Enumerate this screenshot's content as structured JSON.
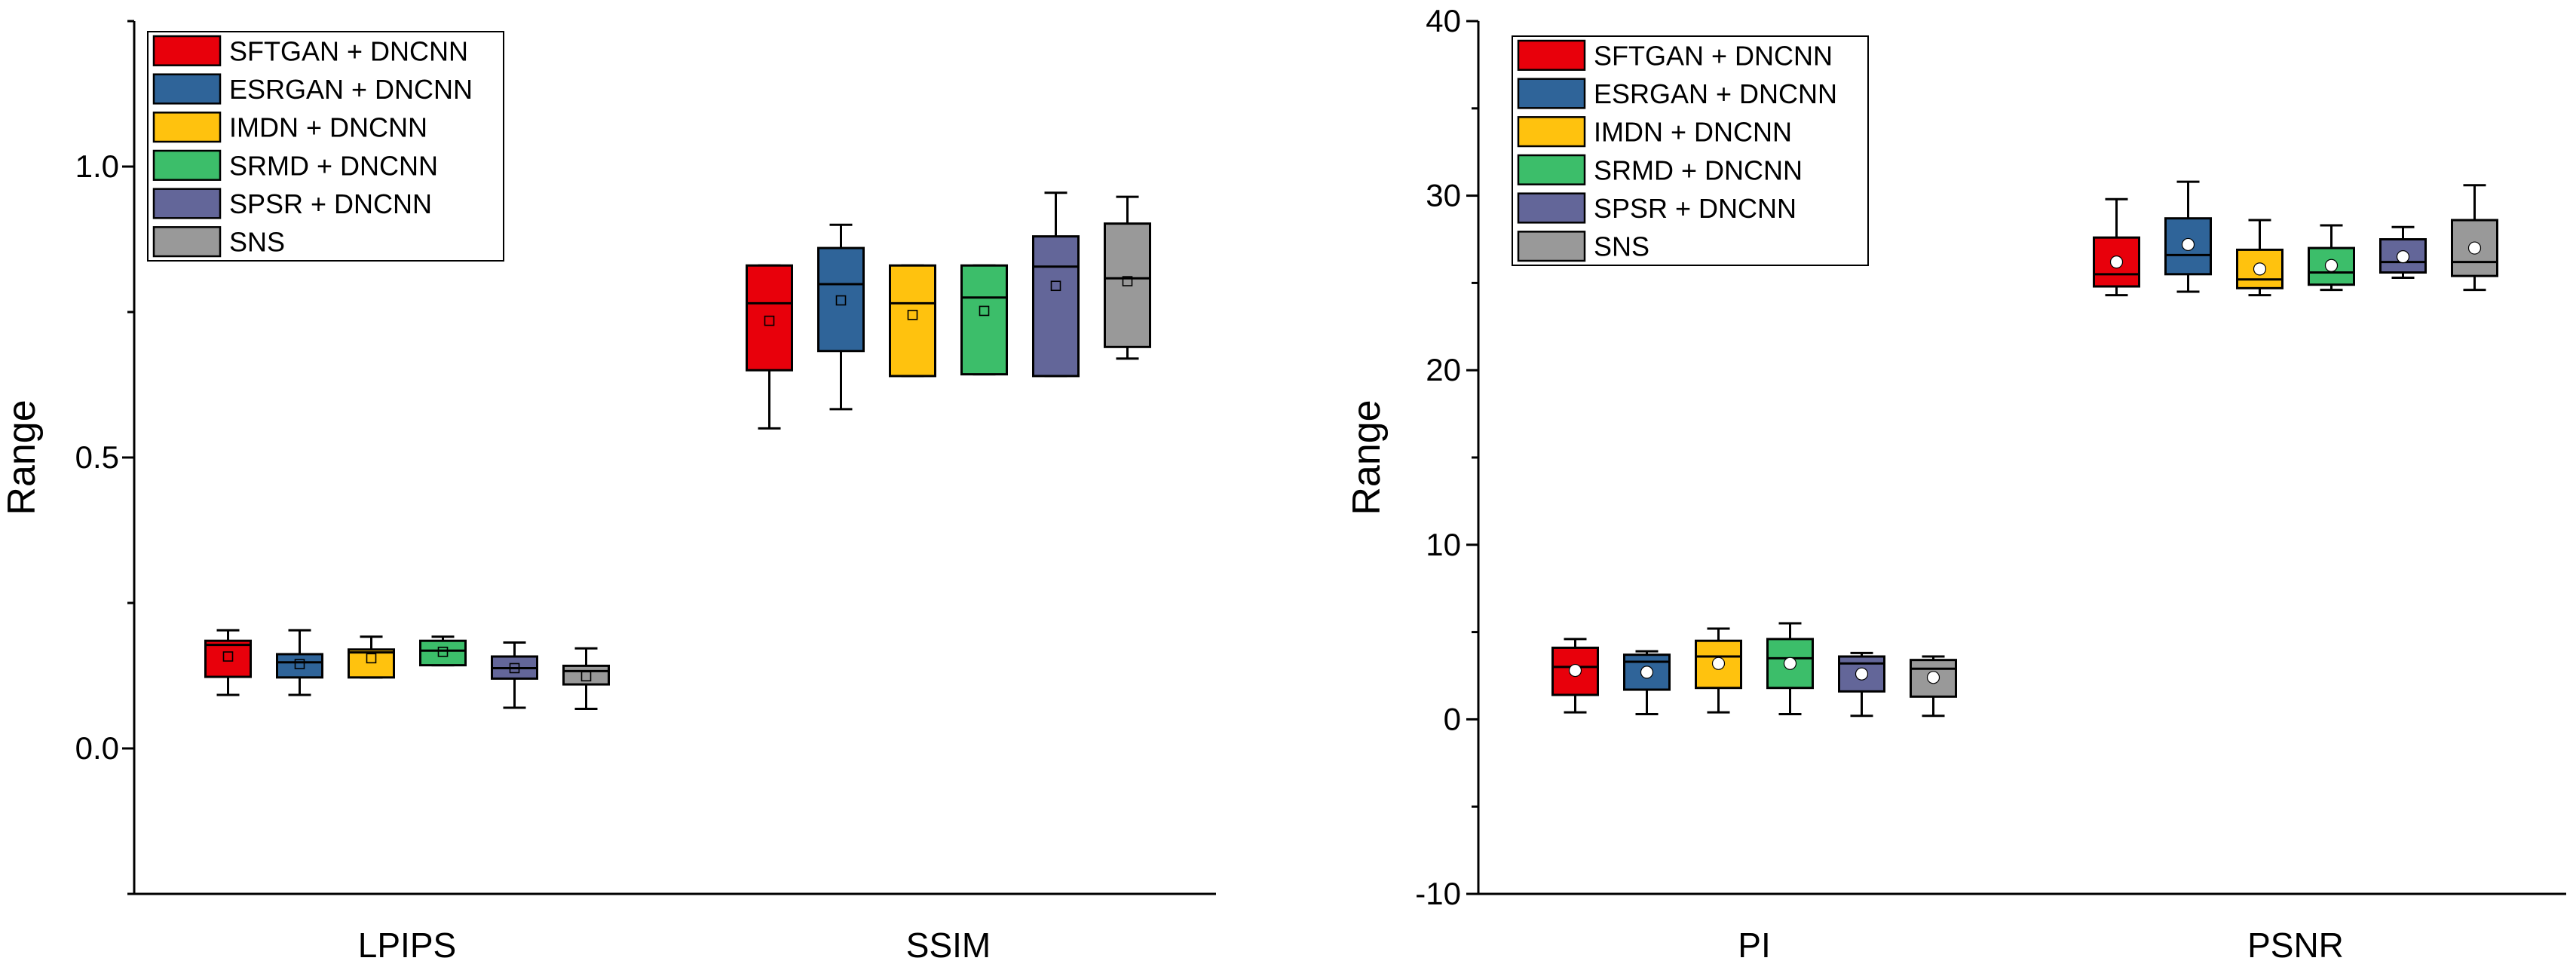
{
  "colors": {
    "SFTGAN + DNCNN": "#e8000b",
    "ESRGAN + DNCNN": "#2f6499",
    "IMDN + DNCNN": "#ffc20e",
    "SRMD + DNCNN": "#3cbe6a",
    "SPSR + DNCNN": "#636699",
    "SNS": "#999999"
  },
  "chart_data": [
    {
      "type": "box",
      "ylabel": "Range",
      "ylim": [
        -0.25,
        1.25
      ],
      "yticks": [
        0.0,
        0.5,
        1.0
      ],
      "ytick_labels": [
        "0.0",
        "0.5",
        "1.0"
      ],
      "mean_marker": "square",
      "legend": {
        "position": "top-left",
        "entries": [
          "SFTGAN + DNCNN",
          "ESRGAN + DNCNN",
          "IMDN + DNCNN",
          "SRMD + DNCNN",
          "SPSR + DNCNN",
          "SNS"
        ]
      },
      "categories": [
        "LPIPS",
        "SSIM"
      ],
      "groups": [
        {
          "category": "LPIPS",
          "boxes": [
            {
              "series": "SFTGAN + DNCNN",
              "min": 0.092,
              "q1": 0.123,
              "median": 0.178,
              "q3": 0.185,
              "max": 0.203,
              "mean": 0.158
            },
            {
              "series": "ESRGAN + DNCNN",
              "min": 0.092,
              "q1": 0.122,
              "median": 0.148,
              "q3": 0.162,
              "max": 0.203,
              "mean": 0.145
            },
            {
              "series": "IMDN + DNCNN",
              "min": 0.122,
              "q1": 0.122,
              "median": 0.165,
              "q3": 0.17,
              "max": 0.192,
              "mean": 0.155
            },
            {
              "series": "SRMD + DNCNN",
              "min": 0.143,
              "q1": 0.143,
              "median": 0.168,
              "q3": 0.185,
              "max": 0.192,
              "mean": 0.166
            },
            {
              "series": "SPSR + DNCNN",
              "min": 0.07,
              "q1": 0.12,
              "median": 0.138,
              "q3": 0.158,
              "max": 0.182,
              "mean": 0.138
            },
            {
              "series": "SNS",
              "min": 0.068,
              "q1": 0.11,
              "median": 0.133,
              "q3": 0.142,
              "max": 0.172,
              "mean": 0.124
            }
          ]
        },
        {
          "category": "SSIM",
          "boxes": [
            {
              "series": "SFTGAN + DNCNN",
              "min": 0.55,
              "q1": 0.65,
              "median": 0.765,
              "q3": 0.83,
              "max": 0.83,
              "mean": 0.735
            },
            {
              "series": "ESRGAN + DNCNN",
              "min": 0.583,
              "q1": 0.683,
              "median": 0.798,
              "q3": 0.86,
              "max": 0.9,
              "mean": 0.77
            },
            {
              "series": "IMDN + DNCNN",
              "min": 0.64,
              "q1": 0.64,
              "median": 0.765,
              "q3": 0.83,
              "max": 0.83,
              "mean": 0.745
            },
            {
              "series": "SRMD + DNCNN",
              "min": 0.643,
              "q1": 0.643,
              "median": 0.775,
              "q3": 0.83,
              "max": 0.83,
              "mean": 0.752
            },
            {
              "series": "SPSR + DNCNN",
              "min": 0.64,
              "q1": 0.64,
              "median": 0.828,
              "q3": 0.88,
              "max": 0.955,
              "mean": 0.795
            },
            {
              "series": "SNS",
              "min": 0.67,
              "q1": 0.69,
              "median": 0.808,
              "q3": 0.902,
              "max": 0.948,
              "mean": 0.803
            }
          ]
        }
      ]
    },
    {
      "type": "box",
      "ylabel": "Range",
      "ylim": [
        -10,
        40
      ],
      "yticks": [
        -10,
        0,
        10,
        20,
        30,
        40
      ],
      "ytick_labels": [
        "-10",
        "0",
        "10",
        "20",
        "30",
        "40"
      ],
      "mean_marker": "circle",
      "legend": {
        "position": "top-left",
        "entries": [
          "SFTGAN + DNCNN",
          "ESRGAN + DNCNN",
          "IMDN + DNCNN",
          "SRMD + DNCNN",
          "SPSR + DNCNN",
          "SNS"
        ]
      },
      "categories": [
        "PI",
        "PSNR"
      ],
      "groups": [
        {
          "category": "PI",
          "boxes": [
            {
              "series": "SFTGAN + DNCNN",
              "min": 0.4,
              "q1": 1.4,
              "median": 3.0,
              "q3": 4.1,
              "max": 4.6,
              "mean": 2.8
            },
            {
              "series": "ESRGAN + DNCNN",
              "min": 0.3,
              "q1": 1.7,
              "median": 3.3,
              "q3": 3.7,
              "max": 3.9,
              "mean": 2.7
            },
            {
              "series": "IMDN + DNCNN",
              "min": 0.4,
              "q1": 1.8,
              "median": 3.6,
              "q3": 4.5,
              "max": 5.2,
              "mean": 3.2
            },
            {
              "series": "SRMD + DNCNN",
              "min": 0.3,
              "q1": 1.8,
              "median": 3.5,
              "q3": 4.6,
              "max": 5.5,
              "mean": 3.2
            },
            {
              "series": "SPSR + DNCNN",
              "min": 0.2,
              "q1": 1.6,
              "median": 3.2,
              "q3": 3.6,
              "max": 3.8,
              "mean": 2.6
            },
            {
              "series": "SNS",
              "min": 0.2,
              "q1": 1.3,
              "median": 2.9,
              "q3": 3.4,
              "max": 3.6,
              "mean": 2.4
            }
          ]
        },
        {
          "category": "PSNR",
          "boxes": [
            {
              "series": "SFTGAN + DNCNN",
              "min": 24.3,
              "q1": 24.8,
              "median": 25.5,
              "q3": 27.6,
              "max": 29.8,
              "mean": 26.2
            },
            {
              "series": "ESRGAN + DNCNN",
              "min": 24.5,
              "q1": 25.5,
              "median": 26.6,
              "q3": 28.7,
              "max": 30.8,
              "mean": 27.2
            },
            {
              "series": "IMDN + DNCNN",
              "min": 24.3,
              "q1": 24.7,
              "median": 25.2,
              "q3": 26.9,
              "max": 28.6,
              "mean": 25.8
            },
            {
              "series": "SRMD + DNCNN",
              "min": 24.6,
              "q1": 24.9,
              "median": 25.6,
              "q3": 27.0,
              "max": 28.3,
              "mean": 26.0
            },
            {
              "series": "SPSR + DNCNN",
              "min": 25.3,
              "q1": 25.6,
              "median": 26.2,
              "q3": 27.5,
              "max": 28.2,
              "mean": 26.5
            },
            {
              "series": "SNS",
              "min": 24.6,
              "q1": 25.4,
              "median": 26.2,
              "q3": 28.6,
              "max": 30.6,
              "mean": 27.0
            }
          ]
        }
      ]
    }
  ]
}
